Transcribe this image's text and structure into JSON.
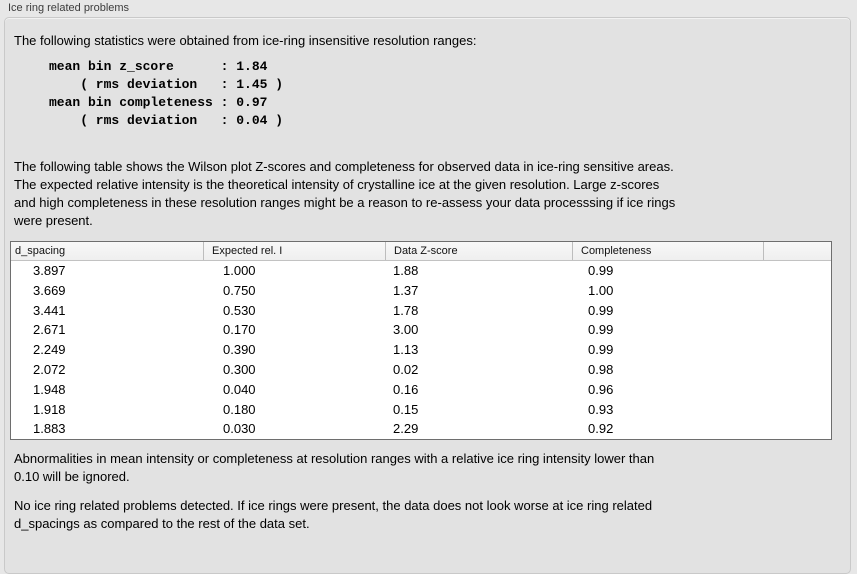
{
  "panel": {
    "title": "Ice ring related problems"
  },
  "intro": "The following statistics were obtained from ice-ring insensitive resolution ranges:",
  "stats": {
    "mean_bin_z_score": "1.84",
    "z_score_rms_deviation": "1.45",
    "mean_bin_completeness": "0.97",
    "completeness_rms_deviation": "0.04",
    "block_text": "mean bin z_score      : 1.84\n    ( rms deviation   : 1.45 )\nmean bin completeness : 0.97\n    ( rms deviation   : 0.04 )"
  },
  "description": "The following table shows the Wilson plot Z-scores and completeness for observed data in ice-ring sensitive areas.\nThe expected relative intensity is the theoretical intensity of crystalline ice at the given resolution. Large z-scores\nand high completeness in these resolution ranges might be a reason to re-assess your data processsing if ice rings\nwere present.",
  "table": {
    "columns": [
      "d_spacing",
      "Expected rel. I",
      "Data Z-score",
      "Completeness"
    ],
    "rows": [
      [
        "3.897",
        "1.000",
        "1.88",
        "0.99"
      ],
      [
        "3.669",
        "0.750",
        "1.37",
        "1.00"
      ],
      [
        "3.441",
        "0.530",
        "1.78",
        "0.99"
      ],
      [
        "2.671",
        "0.170",
        "3.00",
        "0.99"
      ],
      [
        "2.249",
        "0.390",
        "1.13",
        "0.99"
      ],
      [
        "2.072",
        "0.300",
        "0.02",
        "0.98"
      ],
      [
        "1.948",
        "0.040",
        "0.16",
        "0.96"
      ],
      [
        "1.918",
        "0.180",
        "0.15",
        "0.93"
      ],
      [
        "1.883",
        "0.030",
        "2.29",
        "0.92"
      ]
    ]
  },
  "footnote": "Abnormalities in mean intensity or completeness at resolution ranges with a relative ice ring intensity lower than\n0.10 will be ignored.",
  "conclusion": "No ice ring related problems detected. If ice rings were present, the data does not look worse at ice ring related\nd_spacings as compared to the rest of the data set."
}
